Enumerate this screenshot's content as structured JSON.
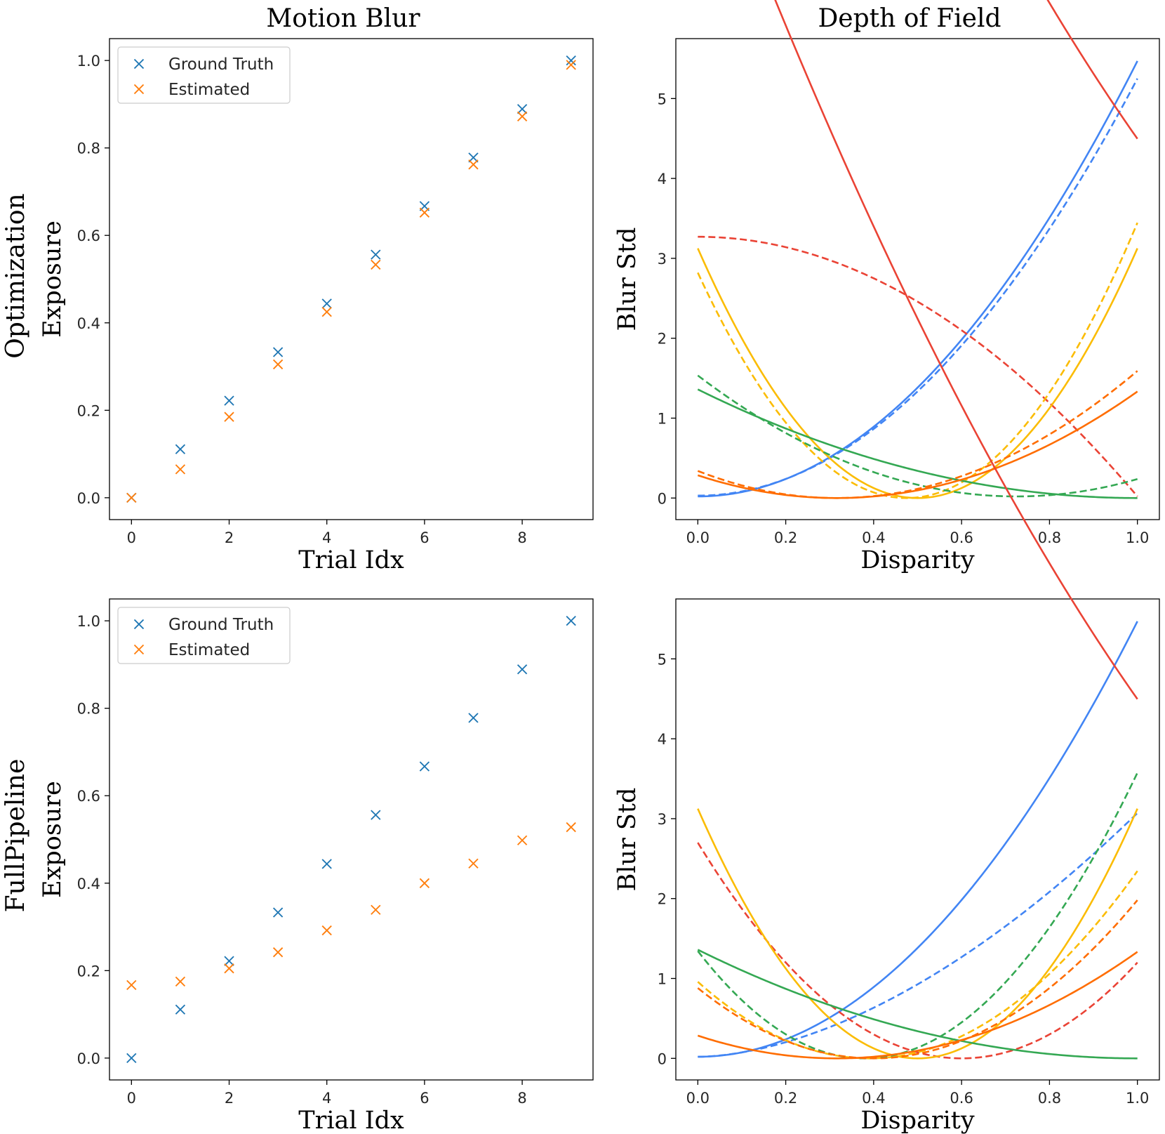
{
  "column_titles": [
    "Motion Blur",
    "Depth of Field"
  ],
  "row_labels": [
    "Optimization",
    "FullPipeline"
  ],
  "colors": {
    "ground_truth": "#1f77b4",
    "estimated": "#ff7f0e",
    "blue": "#4285f4",
    "red": "#ea4335",
    "yellow": "#fbbc04",
    "green": "#34a853",
    "orange": "#ff6d01"
  },
  "chart_data": [
    {
      "type": "scatter",
      "panel": "Optimization / Motion Blur",
      "title": "Motion Blur",
      "xlabel": "Trial Idx",
      "ylabel": "Exposure",
      "xlim": [
        -0.45,
        9.45
      ],
      "ylim": [
        -0.05,
        1.05
      ],
      "xticks": [
        "0",
        "2",
        "4",
        "6",
        "8"
      ],
      "yticks": [
        "0.0",
        "0.2",
        "0.4",
        "0.6",
        "0.8",
        "1.0"
      ],
      "legend": "upper left",
      "series": [
        {
          "name": "Ground Truth",
          "color": "#1f77b4",
          "x": [
            0,
            1,
            2,
            3,
            4,
            5,
            6,
            7,
            8,
            9
          ],
          "values": [
            0.0,
            0.111,
            0.222,
            0.333,
            0.444,
            0.556,
            0.667,
            0.778,
            0.889,
            1.0
          ]
        },
        {
          "name": "Estimated",
          "color": "#ff7f0e",
          "x": [
            0,
            1,
            2,
            3,
            4,
            5,
            6,
            7,
            8,
            9
          ],
          "values": [
            0.0,
            0.065,
            0.185,
            0.305,
            0.425,
            0.533,
            0.652,
            0.762,
            0.872,
            0.99
          ]
        }
      ]
    },
    {
      "type": "line",
      "panel": "Optimization / Depth of Field",
      "title": "Depth of Field",
      "xlabel": "Disparity",
      "ylabel": "Blur Std",
      "xlim": [
        -0.05,
        1.05
      ],
      "ylim": [
        -0.27,
        5.75
      ],
      "xticks": [
        "0.0",
        "0.2",
        "0.4",
        "0.6",
        "0.8",
        "1.0"
      ],
      "yticks": [
        "0",
        "1",
        "2",
        "3",
        "4",
        "5"
      ],
      "series": [
        {
          "name": "blue",
          "style": "solid",
          "color": "#4285f4",
          "model": "quad",
          "a": 5.45,
          "c": 0.0,
          "b": 0.02
        },
        {
          "name": "blue",
          "style": "dashed",
          "color": "#4285f4",
          "model": "quad",
          "a": 5.22,
          "c": 0.0,
          "b": 0.03
        },
        {
          "name": "red",
          "style": "solid",
          "color": "#ea4335",
          "model": "quad",
          "a": 3.4,
          "c": 2.15,
          "b": 0.0
        },
        {
          "name": "red",
          "style": "dashed",
          "color": "#ea4335",
          "model": "quad",
          "a": -3.25,
          "c": 0.0,
          "b": 3.27
        },
        {
          "name": "yellow",
          "style": "solid",
          "color": "#fbbc04",
          "model": "quad",
          "a": 12.5,
          "c": 0.5,
          "b": 0.0
        },
        {
          "name": "yellow",
          "style": "dashed",
          "color": "#fbbc04",
          "model": "quad",
          "a": 12.5,
          "c": 0.475,
          "b": 0.0
        },
        {
          "name": "green",
          "style": "solid",
          "color": "#34a853",
          "model": "quad",
          "a": 1.36,
          "c": 1.0,
          "b": 0.0
        },
        {
          "name": "green",
          "style": "dashed",
          "color": "#34a853",
          "model": "quad",
          "a": 2.88,
          "c": 0.725,
          "b": 0.02
        },
        {
          "name": "orange",
          "style": "solid",
          "color": "#ff6d01",
          "model": "quad",
          "a": 2.85,
          "c": 0.316,
          "b": 0.0
        },
        {
          "name": "orange",
          "style": "dashed",
          "color": "#ff6d01",
          "model": "quad",
          "a": 3.4,
          "c": 0.316,
          "b": 0.0
        }
      ]
    },
    {
      "type": "scatter",
      "panel": "FullPipeline / Motion Blur",
      "xlabel": "Trial Idx",
      "ylabel": "Exposure",
      "xlim": [
        -0.45,
        9.45
      ],
      "ylim": [
        -0.05,
        1.05
      ],
      "xticks": [
        "0",
        "2",
        "4",
        "6",
        "8"
      ],
      "yticks": [
        "0.0",
        "0.2",
        "0.4",
        "0.6",
        "0.8",
        "1.0"
      ],
      "legend": "upper left",
      "series": [
        {
          "name": "Ground Truth",
          "color": "#1f77b4",
          "x": [
            0,
            1,
            2,
            3,
            4,
            5,
            6,
            7,
            8,
            9
          ],
          "values": [
            0.0,
            0.111,
            0.222,
            0.333,
            0.444,
            0.556,
            0.667,
            0.778,
            0.889,
            1.0
          ]
        },
        {
          "name": "Estimated",
          "color": "#ff7f0e",
          "x": [
            0,
            1,
            2,
            3,
            4,
            5,
            6,
            7,
            8,
            9
          ],
          "values": [
            0.167,
            0.175,
            0.205,
            0.242,
            0.292,
            0.339,
            0.4,
            0.445,
            0.498,
            0.528
          ]
        }
      ]
    },
    {
      "type": "line",
      "panel": "FullPipeline / Depth of Field",
      "xlabel": "Disparity",
      "ylabel": "Blur Std",
      "xlim": [
        -0.05,
        1.05
      ],
      "ylim": [
        -0.27,
        5.75
      ],
      "xticks": [
        "0.0",
        "0.2",
        "0.4",
        "0.6",
        "0.8",
        "1.0"
      ],
      "yticks": [
        "0",
        "1",
        "2",
        "3",
        "4",
        "5"
      ],
      "series": [
        {
          "name": "blue",
          "style": "solid",
          "color": "#4285f4",
          "model": "quad",
          "a": 5.45,
          "c": 0.0,
          "b": 0.02
        },
        {
          "name": "blue",
          "style": "dashed",
          "color": "#4285f4",
          "model": "pow",
          "k": 3.05,
          "p": 1.75,
          "b": 0.02
        },
        {
          "name": "red",
          "style": "solid",
          "color": "#ea4335",
          "model": "quad",
          "a": 3.4,
          "c": 2.15,
          "b": 0.0
        },
        {
          "name": "red",
          "style": "dashed",
          "color": "#ea4335",
          "model": "quad",
          "a": 7.5,
          "c": 0.6,
          "b": 0.0
        },
        {
          "name": "yellow",
          "style": "solid",
          "color": "#fbbc04",
          "model": "quad",
          "a": 12.5,
          "c": 0.5,
          "b": 0.0
        },
        {
          "name": "yellow",
          "style": "dashed",
          "color": "#fbbc04",
          "model": "quad",
          "a": 6.3,
          "c": 0.39,
          "b": 0.0
        },
        {
          "name": "green",
          "style": "solid",
          "color": "#34a853",
          "model": "quad",
          "a": 1.36,
          "c": 1.0,
          "b": 0.0
        },
        {
          "name": "green",
          "style": "dashed",
          "color": "#34a853",
          "model": "quad",
          "a": 9.3,
          "c": 0.38,
          "b": 0.0
        },
        {
          "name": "orange",
          "style": "solid",
          "color": "#ff6d01",
          "model": "quad",
          "a": 2.85,
          "c": 0.316,
          "b": 0.0
        },
        {
          "name": "orange",
          "style": "dashed",
          "color": "#ff6d01",
          "model": "quad",
          "a": 5.5,
          "c": 0.4,
          "b": 0.0
        }
      ]
    }
  ]
}
